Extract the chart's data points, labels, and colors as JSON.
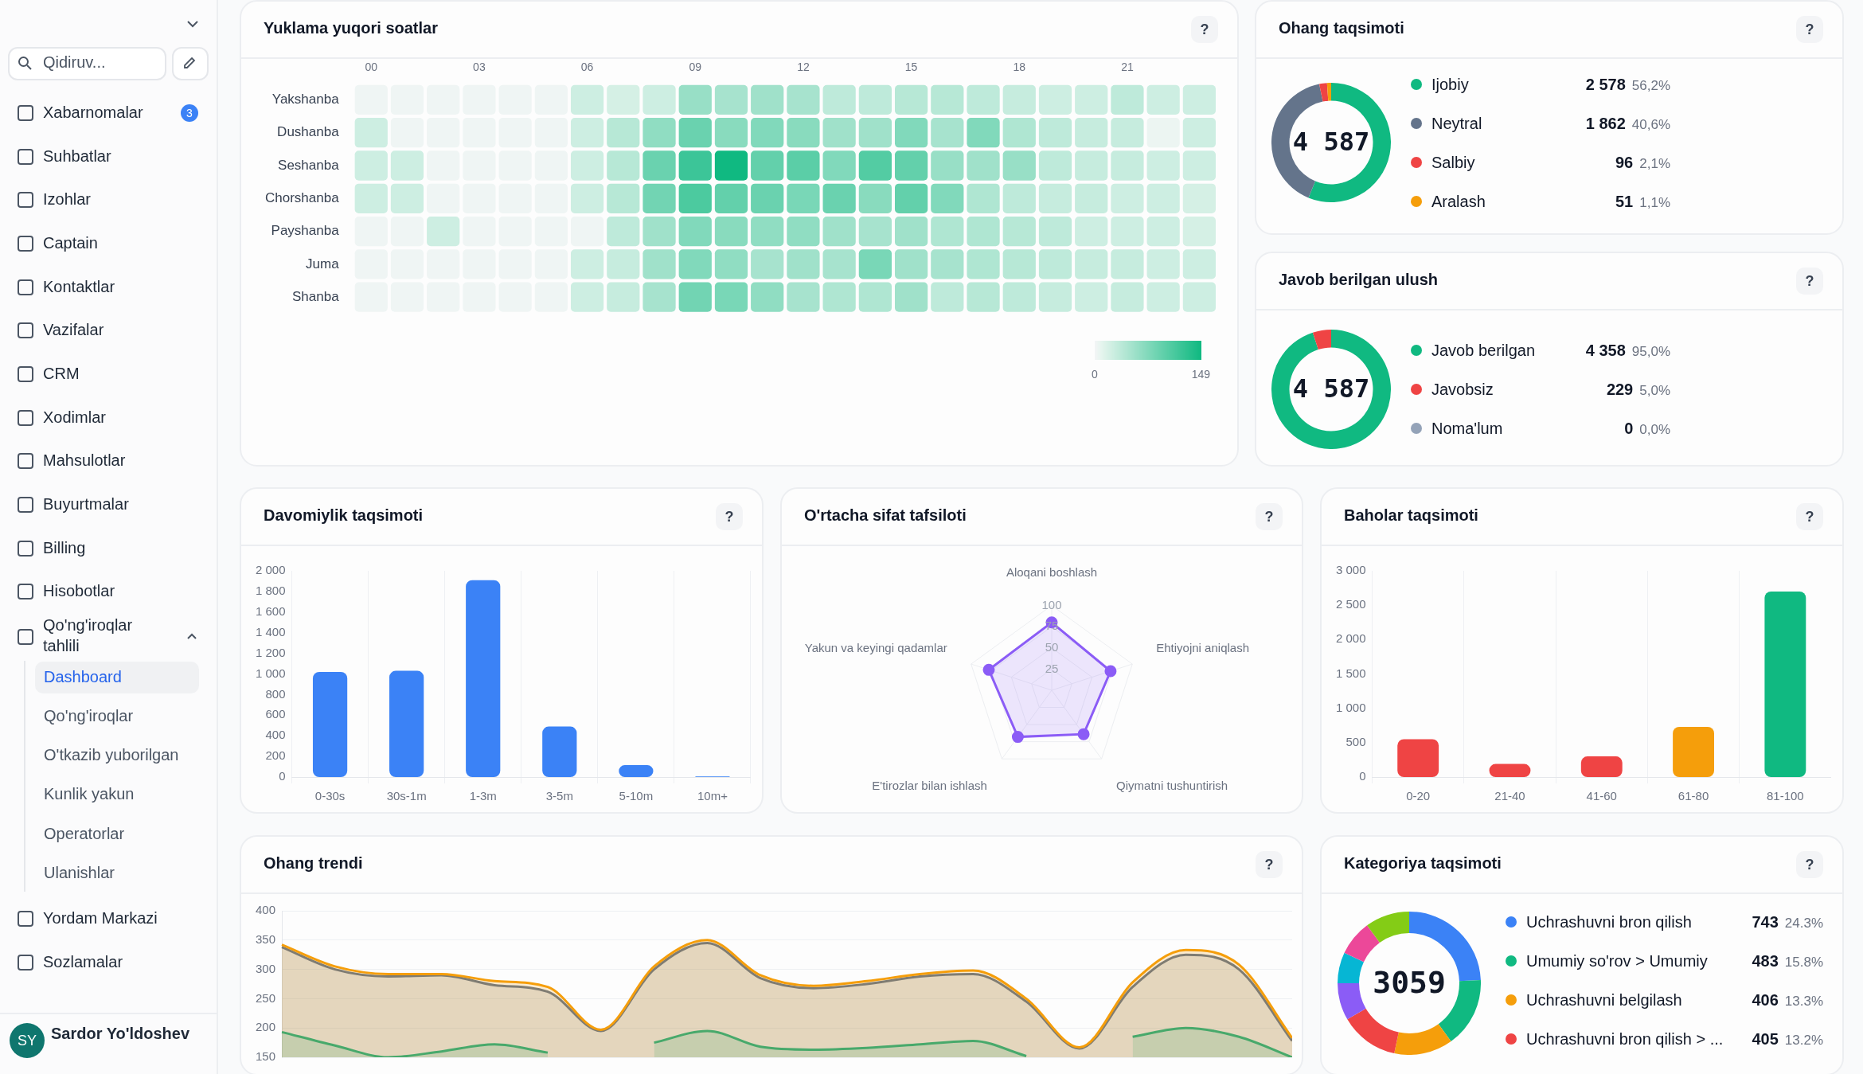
{
  "chart_data": [
    {
      "type": "other",
      "annotations": [
        "Qidiruv...",
        "Xabarnomalar",
        "3",
        "Suhbatlar",
        "Izohlar",
        "Captain",
        "Kontaktlar",
        "Vazifalar",
        "CRM",
        "Xodimlar",
        "Mahsulotlar",
        "Buyurtmalar",
        "Billing",
        "Hisobotlar",
        "Qo'ng'iroqlar tahlili",
        "Dashboard",
        "Qo'ng'iroqlar",
        "O'tkazib yuborilgan",
        "Kunlik yakun",
        "Operatorlar",
        "Ulanishlar",
        "Yordam Markazi",
        "Sozlamalar",
        "SY",
        "Sardor Yo'ldoshev"
      ]
    },
    {
      "type": "heatmap",
      "title": "Yuklama yuqori soatlar",
      "annotations": [
        "?"
      ],
      "categories": [
        "00",
        null,
        null,
        "03",
        null,
        null,
        "06",
        null,
        null,
        "09",
        null,
        null,
        "12",
        null,
        null,
        "15",
        null,
        null,
        "18",
        null,
        null,
        "21",
        null,
        null
      ],
      "y_categories": [
        "Yakshanba",
        "Dushanba",
        "Seshanba",
        "Chorshanba",
        "Payshanba",
        "Juma",
        "Shanba"
      ],
      "cells": [
        [
          3,
          3,
          3,
          3,
          3,
          3,
          25,
          20,
          25,
          60,
          50,
          55,
          50,
          35,
          35,
          40,
          40,
          35,
          30,
          25,
          25,
          35,
          25,
          25
        ],
        [
          25,
          3,
          3,
          3,
          3,
          3,
          25,
          40,
          65,
          90,
          70,
          75,
          70,
          55,
          55,
          75,
          50,
          75,
          45,
          35,
          30,
          30,
          5,
          25
        ],
        [
          25,
          25,
          3,
          3,
          3,
          3,
          25,
          40,
          90,
          120,
          149,
          95,
          100,
          75,
          105,
          95,
          60,
          55,
          60,
          35,
          30,
          30,
          25,
          25
        ],
        [
          25,
          25,
          3,
          3,
          3,
          3,
          25,
          40,
          85,
          110,
          95,
          90,
          80,
          90,
          70,
          95,
          75,
          45,
          35,
          30,
          30,
          25,
          25,
          20
        ],
        [
          3,
          3,
          25,
          3,
          3,
          3,
          3,
          35,
          55,
          75,
          70,
          65,
          65,
          55,
          50,
          55,
          45,
          45,
          40,
          35,
          25,
          25,
          25,
          20
        ],
        [
          3,
          3,
          3,
          3,
          3,
          3,
          25,
          30,
          55,
          75,
          65,
          50,
          55,
          50,
          80,
          55,
          50,
          45,
          40,
          35,
          30,
          30,
          25,
          25
        ],
        [
          3,
          3,
          3,
          3,
          3,
          3,
          25,
          30,
          50,
          85,
          80,
          65,
          50,
          45,
          45,
          55,
          35,
          40,
          35,
          30,
          25,
          30,
          25,
          25
        ]
      ],
      "clim": [
        0,
        149
      ],
      "cticks": [
        0,
        149
      ]
    },
    {
      "type": "donut",
      "title": "Ohang taqsimoti",
      "annotations": [
        "4 587",
        "?"
      ],
      "legend": "right",
      "categories": [
        "Ijobiy",
        "Neytral",
        "Salbiy",
        "Aralash"
      ],
      "values": [
        2578,
        1862,
        96,
        51
      ],
      "colors": [
        "#10b981",
        "#64748b",
        "#ef4444",
        "#f59e0b"
      ],
      "value_labels": [
        "2 578 56,2%",
        "1 862 40,6%",
        "96 2,1%",
        "51 1,1%"
      ]
    },
    {
      "type": "donut",
      "title": "Javob berilgan ulush",
      "annotations": [
        "4 587",
        "?"
      ],
      "legend": "right",
      "categories": [
        "Javob berilgan",
        "Javobsiz",
        "Noma'lum"
      ],
      "values": [
        4358,
        229,
        0
      ],
      "colors": [
        "#10b981",
        "#ef4444",
        "#94a3b8"
      ],
      "value_labels": [
        "4 358 95,0%",
        "229 5,0%",
        "0 0,0%"
      ]
    },
    {
      "type": "bar",
      "title": "Davomiylik taqsimoti",
      "annotations": [
        "?"
      ],
      "categories": [
        "0-30s",
        "30s-1m",
        "1-3m",
        "3-5m",
        "5-10m",
        "10m+"
      ],
      "values": [
        1020,
        1030,
        1910,
        490,
        115,
        5
      ],
      "color": "#3b82f6",
      "ylim": [
        0,
        2000
      ],
      "yticks": [
        0,
        200,
        400,
        600,
        800,
        {
          "value": 1000,
          "label": "1 000"
        },
        {
          "value": 1200,
          "label": "1 200"
        },
        {
          "value": 1400,
          "label": "1 400"
        },
        {
          "value": 1600,
          "label": "1 600"
        },
        {
          "value": 1800,
          "label": "1 800"
        },
        {
          "value": 2000,
          "label": "2 000"
        }
      ],
      "grid": "x"
    },
    {
      "type": "radar",
      "title": "O'rtacha sifat tafsiloti",
      "annotations": [
        "?"
      ],
      "categories": [
        "Aloqani boshlash",
        "Ehtiyojni aniqlash",
        "Qiymatni tushuntirish",
        "E'tirozlar bilan ishlash",
        "Yakun va keyingi qadamlar"
      ],
      "series": [
        {
          "color": "#8b5cf6",
          "values": [
            80,
            73,
            64,
            68,
            78
          ]
        }
      ],
      "ylim": [
        0,
        100
      ],
      "yticks": [
        25,
        50,
        75,
        100
      ],
      "grid": true,
      "marker": "circle"
    },
    {
      "type": "bar",
      "title": "Baholar taqsimoti",
      "annotations": [
        "?"
      ],
      "categories": [
        "0-20",
        "21-40",
        "41-60",
        "61-80",
        "81-100"
      ],
      "values": [
        550,
        190,
        300,
        730,
        2700
      ],
      "colors": [
        "#ef4444",
        "#ef4444",
        "#ef4444",
        "#f59e0b",
        "#10b981"
      ],
      "ylim": [
        0,
        3000
      ],
      "yticks": [
        0,
        500,
        {
          "value": 1000,
          "label": "1 000"
        },
        {
          "value": 1500,
          "label": "1 500"
        },
        {
          "value": 2000,
          "label": "2 000"
        },
        {
          "value": 2500,
          "label": "2 500"
        },
        {
          "value": 3000,
          "label": "3 000"
        }
      ],
      "grid": "x"
    },
    {
      "type": "area",
      "title": "Ohang trendi",
      "annotations": [
        "?"
      ],
      "tick_labels": "y",
      "categories": [
        null,
        null,
        null,
        null,
        null,
        null,
        null,
        null,
        null,
        null,
        null,
        null,
        null,
        null,
        null,
        null,
        null,
        null,
        null,
        null
      ],
      "series": [
        {
          "color": "#f59e0b",
          "values": [
            342,
            305,
            292,
            292,
            280,
            270,
            197,
            305,
            350,
            290,
            272,
            280,
            292,
            298,
            250,
            167,
            278,
            333,
            308,
            183
          ]
        },
        {
          "color": "#64748b",
          "values": [
            338,
            300,
            288,
            290,
            273,
            262,
            195,
            300,
            345,
            285,
            268,
            275,
            288,
            292,
            245,
            165,
            270,
            325,
            300,
            178
          ]
        },
        {
          "color": "#10b981",
          "values": [
            193,
            170,
            150,
            160,
            172,
            158,
            null,
            175,
            195,
            168,
            163,
            166,
            172,
            178,
            152,
            null,
            185,
            200,
            185,
            150
          ]
        }
      ],
      "ylim": [
        150,
        400
      ],
      "yticks": [
        150,
        200,
        250,
        300,
        350,
        400
      ],
      "grid": "y",
      "marker": "none"
    },
    {
      "type": "donut",
      "title": "Kategoriya taqsimoti",
      "annotations": [
        "3059",
        "?"
      ],
      "legend": "right",
      "categories": [
        "Uchrashuvni bron qilish",
        "Umumiy so'rov > Umumiy",
        "Uchrashuvni belgilash",
        "Uchrashuvni bron qilish > ...",
        null,
        null,
        null,
        null
      ],
      "values": [
        743,
        483,
        406,
        405,
        257,
        214,
        245,
        306
      ],
      "colors": [
        "#3b82f6",
        "#10b981",
        "#f59e0b",
        "#ef4444",
        "#8b5cf6",
        "#06b6d4",
        "#ec4899",
        "#84cc16"
      ],
      "value_labels": [
        "743 24.3%",
        "483 15.8%",
        "406 13.3%",
        "405 13.2%",
        null,
        null,
        null,
        null
      ]
    }
  ]
}
